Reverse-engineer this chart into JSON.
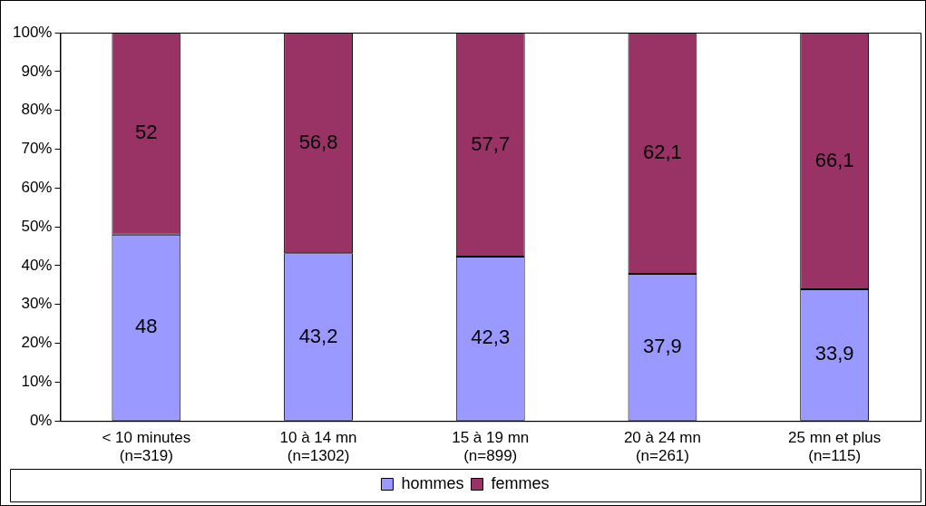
{
  "chart_data": {
    "type": "bar",
    "stacked": true,
    "categories": [
      "< 10 minutes\n(n=319)",
      "10 à 14 mn\n(n=1302)",
      "15 à 19 mn\n(n=899)",
      "20 à 24 mn\n(n=261)",
      "25 mn et plus\n(n=115)"
    ],
    "series": [
      {
        "name": "hommes",
        "color": "#9999ff",
        "values": [
          48,
          43.2,
          42.3,
          37.9,
          33.9
        ],
        "value_labels": [
          "48",
          "43,2",
          "42,3",
          "37,9",
          "33,9"
        ]
      },
      {
        "name": "femmes",
        "color": "#993366",
        "values": [
          52,
          56.8,
          57.7,
          62.1,
          66.1
        ],
        "value_labels": [
          "52",
          "56,8",
          "57,7",
          "62,1",
          "66,1"
        ]
      }
    ],
    "ylim": [
      0,
      100
    ],
    "yticks": [
      {
        "value": 0,
        "label": "0%"
      },
      {
        "value": 10,
        "label": "10%"
      },
      {
        "value": 20,
        "label": "20%"
      },
      {
        "value": 30,
        "label": "30%"
      },
      {
        "value": 40,
        "label": "40%"
      },
      {
        "value": 50,
        "label": "50%"
      },
      {
        "value": 60,
        "label": "60%"
      },
      {
        "value": 70,
        "label": "70%"
      },
      {
        "value": 80,
        "label": "80%"
      },
      {
        "value": 90,
        "label": "90%"
      },
      {
        "value": 100,
        "label": "100%"
      }
    ],
    "grid": false,
    "legend": "bottom"
  }
}
